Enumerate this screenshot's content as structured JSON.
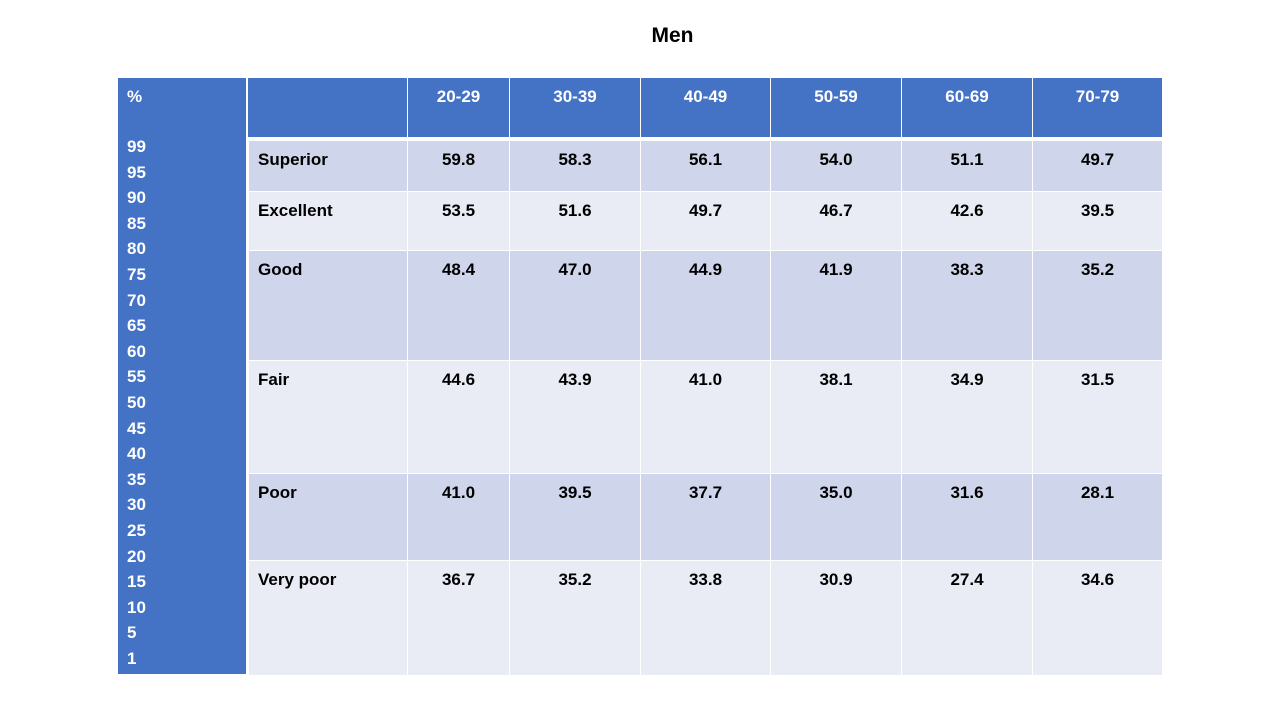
{
  "title": "Men",
  "table": {
    "corner": "%",
    "percentiles": [
      "99",
      "95",
      "90",
      "85",
      "80",
      "75",
      "70",
      "65",
      "60",
      "55",
      "50",
      "45",
      "40",
      "35",
      "30",
      "25",
      "20",
      "15",
      "10",
      "5",
      "1"
    ],
    "columns": [
      "20-29",
      "30-39",
      "40-49",
      "50-59",
      "60-69",
      "70-79"
    ],
    "rows": [
      {
        "label": "Superior",
        "values": [
          "59.8",
          "58.3",
          "56.1",
          "54.0",
          "51.1",
          "49.7"
        ]
      },
      {
        "label": "Excellent",
        "values": [
          "53.5",
          "51.6",
          "49.7",
          "46.7",
          "42.6",
          "39.5"
        ]
      },
      {
        "label": "Good",
        "values": [
          "48.4",
          "47.0",
          "44.9",
          "41.9",
          "38.3",
          "35.2"
        ]
      },
      {
        "label": "Fair",
        "values": [
          "44.6",
          "43.9",
          "41.0",
          "38.1",
          "34.9",
          "31.5"
        ]
      },
      {
        "label": "Poor",
        "values": [
          "41.0",
          "39.5",
          "37.7",
          "35.0",
          "31.6",
          "28.1"
        ]
      },
      {
        "label": "Very poor",
        "values": [
          "36.7",
          "35.2",
          "33.8",
          "30.9",
          "27.4",
          "34.6"
        ]
      }
    ]
  }
}
